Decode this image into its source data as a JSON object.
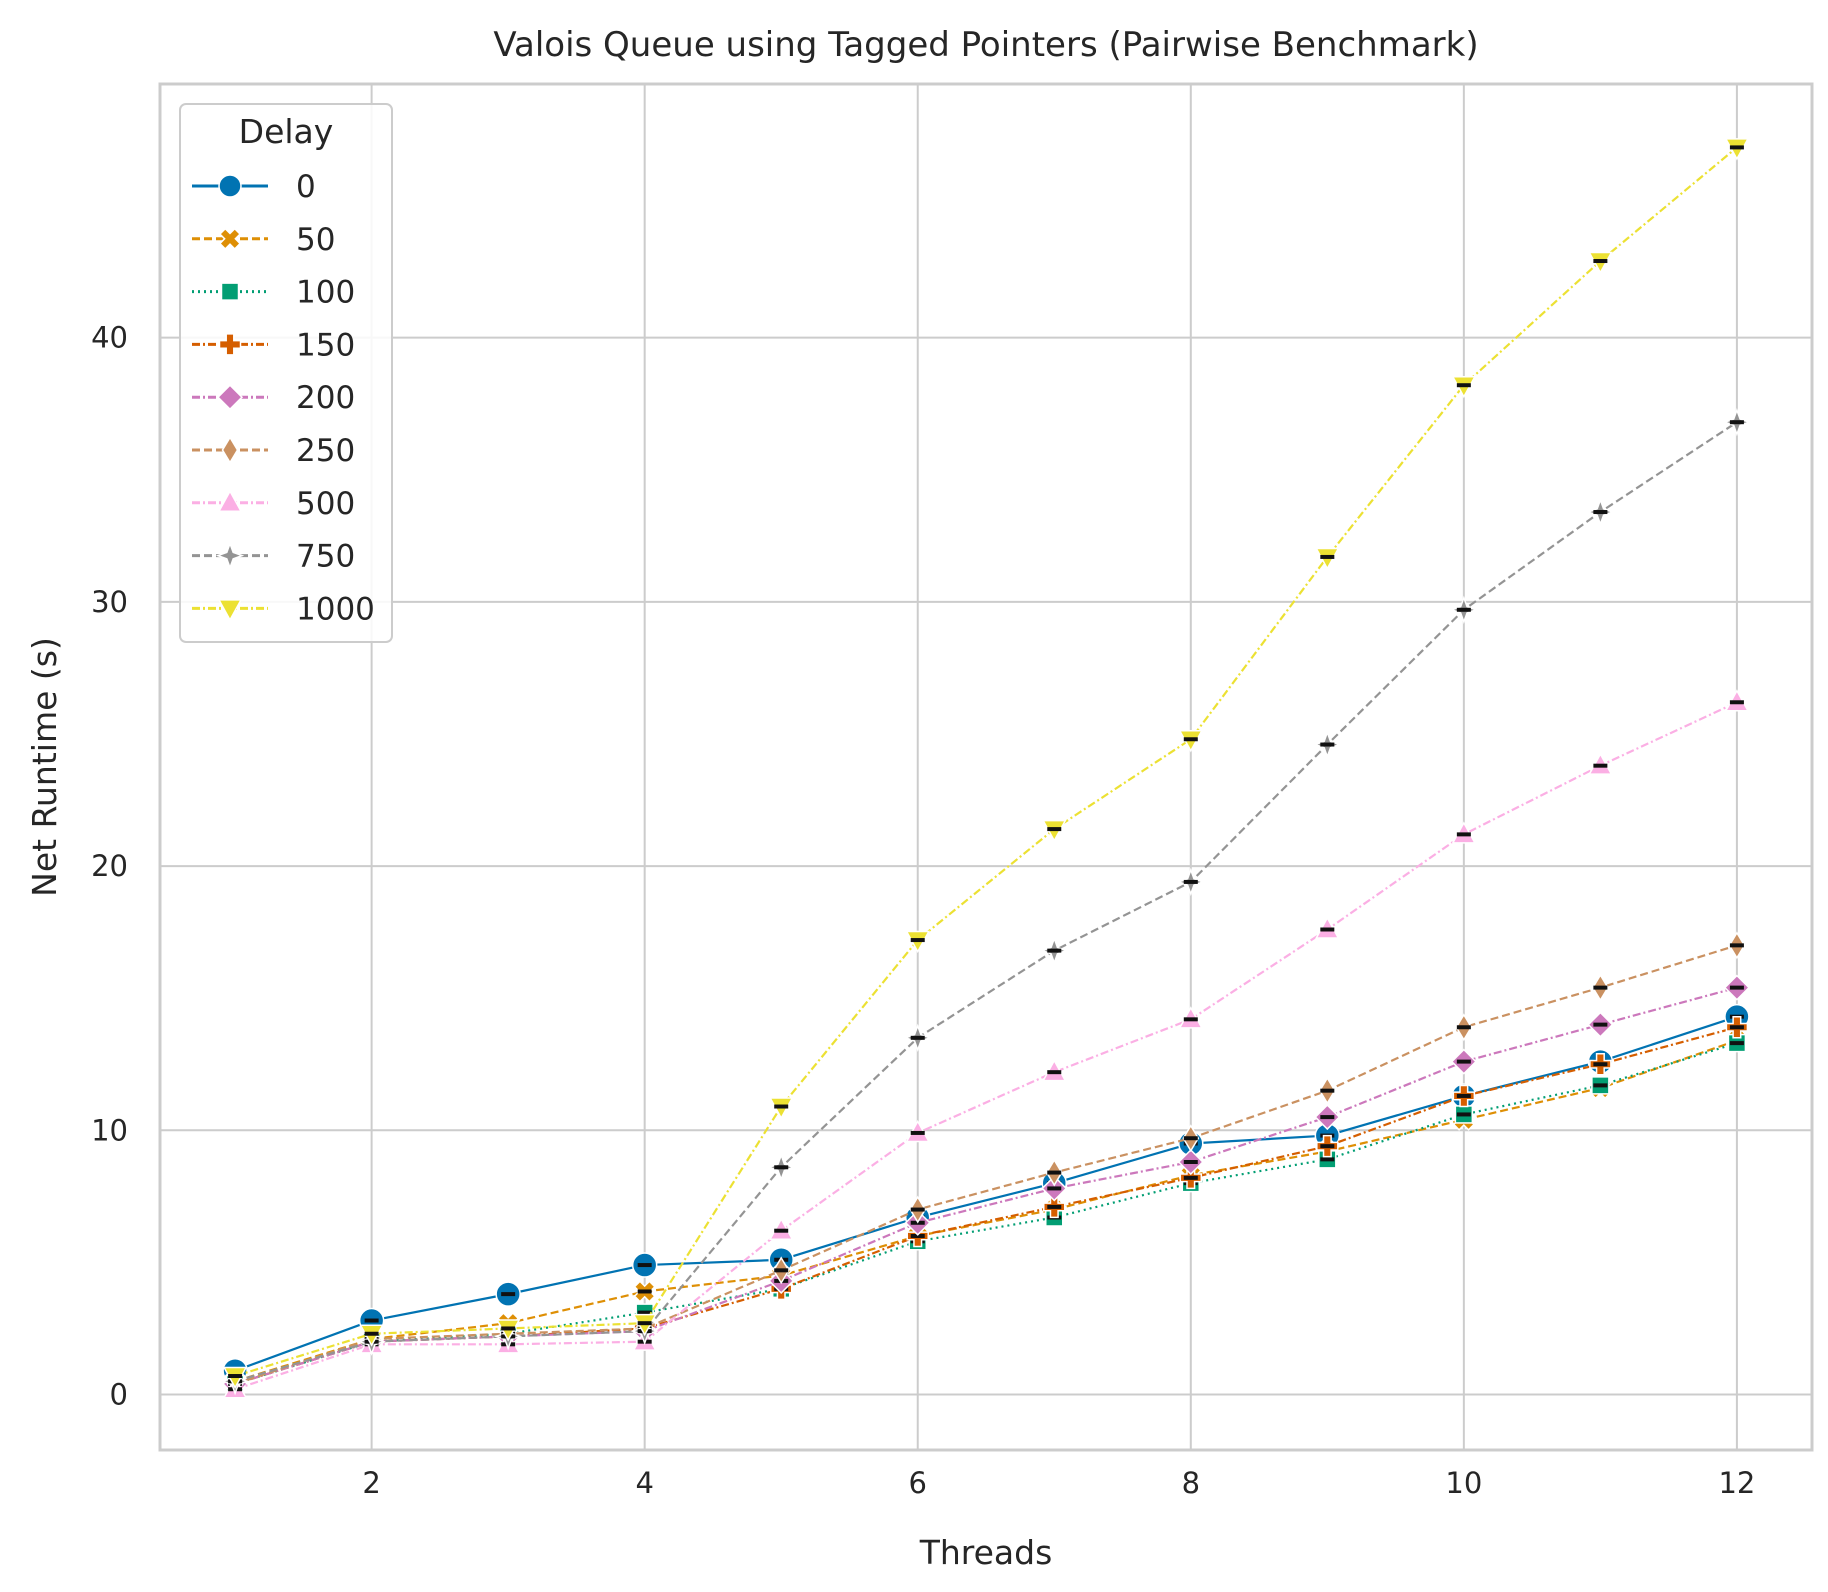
{
  "chart_data": {
    "type": "line",
    "title": "Valois Queue using Tagged Pointers (Pairwise Benchmark)",
    "xlabel": "Threads",
    "ylabel": "Net Runtime (s)",
    "xlim": [
      0.45,
      12.55
    ],
    "ylim": [
      -2.1,
      49.6
    ],
    "xticks": [
      2,
      4,
      6,
      8,
      10,
      12
    ],
    "yticks": [
      0,
      10,
      20,
      30,
      40
    ],
    "grid": true,
    "legend": {
      "title": "Delay",
      "placement": "top-left"
    },
    "x": [
      1,
      2,
      3,
      4,
      5,
      6,
      7,
      8,
      9,
      10,
      11,
      12
    ],
    "series": [
      {
        "name": "0",
        "color": "#0173b2",
        "marker": "circle",
        "dash": "solid",
        "values": [
          0.9,
          2.8,
          3.8,
          4.9,
          5.1,
          6.7,
          8.0,
          9.5,
          9.8,
          11.3,
          12.6,
          14.3
        ]
      },
      {
        "name": "50",
        "color": "#de8f05",
        "marker": "x-filled",
        "dash": "dashed",
        "values": [
          0.5,
          2.1,
          2.7,
          3.9,
          4.5,
          6.0,
          7.0,
          8.3,
          9.2,
          10.4,
          11.6,
          13.4
        ]
      },
      {
        "name": "100",
        "color": "#029e73",
        "marker": "square",
        "dash": "dotted",
        "values": [
          0.4,
          2.0,
          2.3,
          3.1,
          4.0,
          5.8,
          6.7,
          8.0,
          8.9,
          10.6,
          11.7,
          13.3
        ]
      },
      {
        "name": "150",
        "color": "#d55e00",
        "marker": "plus-filled",
        "dash": "dashdot",
        "values": [
          0.4,
          2.0,
          2.2,
          2.5,
          4.0,
          6.0,
          7.1,
          8.2,
          9.4,
          11.3,
          12.5,
          13.9
        ]
      },
      {
        "name": "200",
        "color": "#cc78bc",
        "marker": "diamond",
        "dash": "dashdot",
        "values": [
          0.4,
          2.0,
          2.2,
          2.4,
          4.3,
          6.5,
          7.8,
          8.8,
          10.5,
          12.6,
          14.0,
          15.4
        ]
      },
      {
        "name": "250",
        "color": "#ca9161",
        "marker": "thin-diamond",
        "dash": "dashed",
        "values": [
          0.4,
          2.1,
          2.3,
          2.5,
          4.7,
          7.0,
          8.4,
          9.7,
          11.5,
          13.9,
          15.4,
          17.0
        ]
      },
      {
        "name": "500",
        "color": "#fbafe4",
        "marker": "triangle-up",
        "dash": "dashdot",
        "values": [
          0.2,
          1.9,
          1.9,
          2.0,
          6.2,
          9.9,
          12.2,
          14.2,
          17.6,
          21.2,
          23.8,
          26.2
        ]
      },
      {
        "name": "750",
        "color": "#949494",
        "marker": "star",
        "dash": "dashed",
        "values": [
          0.5,
          2.0,
          2.2,
          2.4,
          8.6,
          13.5,
          16.8,
          19.4,
          24.6,
          29.7,
          33.4,
          36.8
        ]
      },
      {
        "name": "1000",
        "color": "#ece133",
        "marker": "triangle-down",
        "dash": "dashdot",
        "values": [
          0.7,
          2.3,
          2.5,
          2.7,
          10.9,
          17.2,
          21.4,
          24.8,
          31.7,
          38.2,
          42.9,
          47.2
        ]
      }
    ]
  }
}
